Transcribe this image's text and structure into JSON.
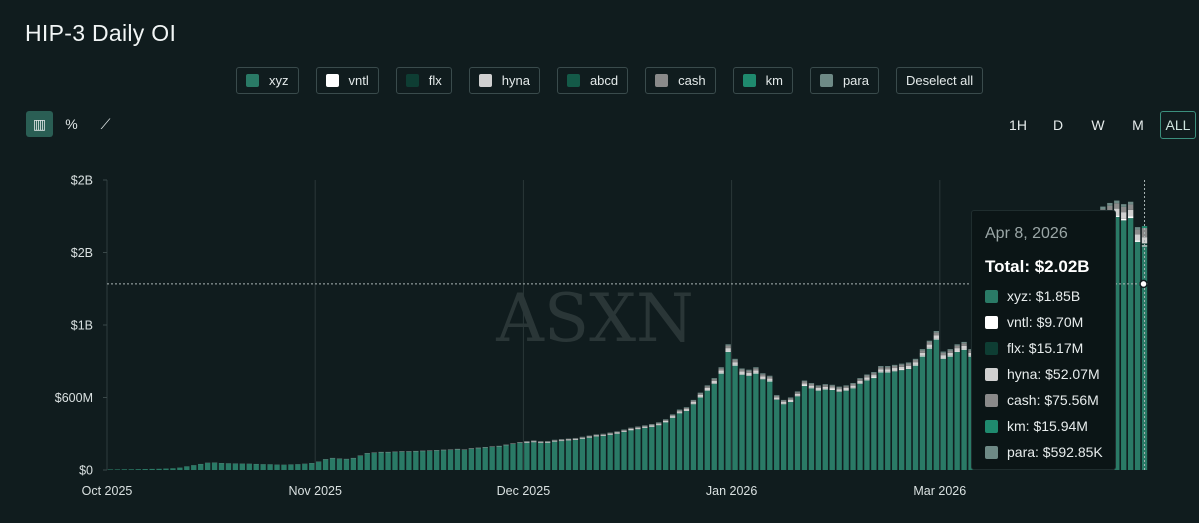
{
  "title": "HIP-3 Daily OI",
  "colors": {
    "xyz": "#2a7a66",
    "vntl": "#ffffff",
    "flx": "#0e3d33",
    "hyna": "#d0d0d0",
    "abcd": "#145a48",
    "cash": "#8a8a8a",
    "km": "#1f8a6e",
    "para": "#6e8a86"
  },
  "legend": [
    {
      "label": "xyz",
      "color": "#2a7a66"
    },
    {
      "label": "vntl",
      "color": "#ffffff"
    },
    {
      "label": "flx",
      "color": "#0e3d33"
    },
    {
      "label": "hyna",
      "color": "#d0d0d0"
    },
    {
      "label": "abcd",
      "color": "#145a48"
    },
    {
      "label": "cash",
      "color": "#8a8a8a"
    },
    {
      "label": "km",
      "color": "#1f8a6e"
    },
    {
      "label": "para",
      "color": "#6e8a86"
    }
  ],
  "deselect_label": "Deselect all",
  "tools": [
    {
      "name": "bar-chart-icon",
      "glyph": "▥"
    },
    {
      "name": "percent-icon",
      "glyph": "%"
    },
    {
      "name": "line-chart-icon",
      "glyph": "⟋"
    }
  ],
  "ranges": [
    "1H",
    "D",
    "W",
    "M",
    "ALL"
  ],
  "active_range": "ALL",
  "watermark": "ASXN",
  "tooltip": {
    "date": "Apr 8, 2026",
    "total": "Total: $2.02B",
    "rows": [
      {
        "label": "xyz: $1.85B",
        "color": "#2a7a66"
      },
      {
        "label": "vntl: $9.70M",
        "color": "#ffffff"
      },
      {
        "label": "flx: $15.17M",
        "color": "#0e3d33"
      },
      {
        "label": "hyna: $52.07M",
        "color": "#d0d0d0"
      },
      {
        "label": "cash: $75.56M",
        "color": "#8a8a8a"
      },
      {
        "label": "km: $15.94M",
        "color": "#1f8a6e"
      },
      {
        "label": "para: $592.85K",
        "color": "#6e8a86"
      }
    ]
  },
  "chart_data": {
    "type": "bar",
    "stacked": true,
    "title": "HIP-3 Daily OI",
    "y_tick_labels": [
      "$0",
      "$600M",
      "$1B",
      "$2B",
      "$2B"
    ],
    "y_ticks": [
      0,
      600000000,
      1200000000,
      1800000000,
      2400000000
    ],
    "ylim": [
      0,
      2400000000
    ],
    "x_tick_labels": [
      "Oct 2025",
      "Nov 2025",
      "Dec 2025",
      "Jan 2026",
      "Mar 2026"
    ],
    "x_tick_index": [
      0,
      30,
      60,
      90,
      120
    ],
    "crosshair_value": 1540000000,
    "grid": "vertical",
    "legend_position": "top",
    "series_names": [
      "xyz",
      "vntl",
      "flx",
      "hyna",
      "abcd",
      "cash",
      "km",
      "para"
    ],
    "totals_musd": [
      5,
      5,
      6,
      6,
      7,
      8,
      9,
      10,
      12,
      14,
      20,
      30,
      40,
      50,
      60,
      62,
      58,
      55,
      54,
      53,
      52,
      50,
      48,
      47,
      45,
      44,
      46,
      48,
      52,
      58,
      70,
      90,
      100,
      95,
      92,
      100,
      120,
      140,
      145,
      150,
      150,
      152,
      155,
      155,
      158,
      160,
      162,
      165,
      168,
      170,
      175,
      170,
      180,
      185,
      190,
      195,
      200,
      210,
      220,
      230,
      240,
      245,
      238,
      240,
      250,
      255,
      260,
      265,
      275,
      285,
      295,
      300,
      310,
      320,
      335,
      350,
      360,
      370,
      380,
      395,
      420,
      460,
      500,
      520,
      580,
      640,
      700,
      760,
      850,
      1040,
      920,
      840,
      830,
      850,
      800,
      780,
      620,
      580,
      600,
      650,
      740,
      720,
      700,
      710,
      705,
      690,
      700,
      720,
      760,
      790,
      810,
      860,
      860,
      870,
      880,
      890,
      920,
      1000,
      1070,
      1150,
      980,
      1000,
      1040,
      1060,
      1000,
      1150,
      1220,
      1280,
      1160,
      1200,
      1550,
      1570,
      1600,
      1620,
      1650,
      1680,
      1710,
      1740,
      1780,
      1810,
      1850,
      1880,
      2080,
      2180,
      2210,
      2230,
      2200,
      2220,
      2010,
      2020
    ],
    "last_breakdown": {
      "xyz": 1850000000,
      "vntl": 9700000,
      "flx": 15170000,
      "hyna": 52070000,
      "cash": 75560000,
      "km": 15940000,
      "para": 592850
    }
  }
}
